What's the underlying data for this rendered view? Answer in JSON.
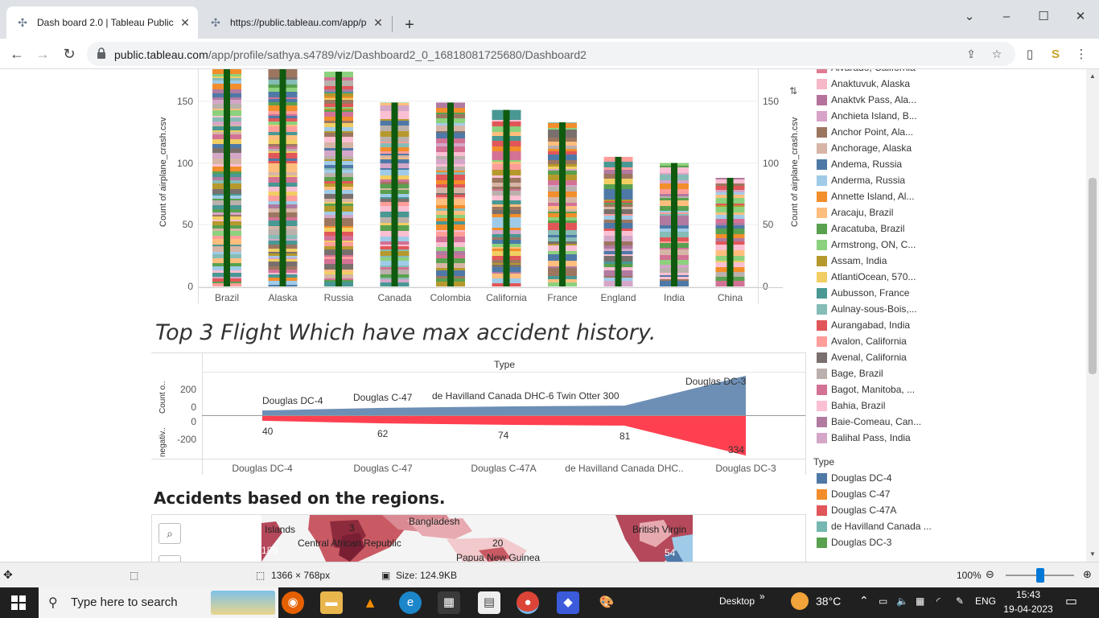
{
  "browser": {
    "tabs": [
      {
        "title": "Dash board 2.0 | Tableau Public",
        "active": true
      },
      {
        "title": "https://public.tableau.com/app/p",
        "active": false
      }
    ],
    "url_host": "public.tableau.com",
    "url_path": "/app/profile/sathya.s4789/viz/Dashboard2_0_16818081725680/Dashboard2"
  },
  "chart_data": [
    {
      "type": "bar",
      "categories": [
        "Brazil",
        "Alaska",
        "Russia",
        "Canada",
        "Colombia",
        "California",
        "France",
        "England",
        "India",
        "China"
      ],
      "values": [
        176,
        176,
        174,
        149,
        149,
        143,
        133,
        105,
        100,
        88
      ],
      "ylabel": "Count of airplane_crash.csv",
      "yticks": [
        0,
        50,
        100,
        150
      ],
      "ylim": [
        0,
        176
      ],
      "secondary_ylabel": "Count of airplane_crash.csv",
      "stacked_colors": true
    },
    {
      "type": "area",
      "title": "Type",
      "categories": [
        "Douglas DC-4",
        "Douglas C-47",
        "Douglas C-47A",
        "de Havilland Canada DHC..",
        "Douglas DC-3"
      ],
      "series": [
        {
          "name": "Count o..",
          "values": [
            40,
            62,
            74,
            81,
            334
          ]
        },
        {
          "name": "negativ..",
          "values": [
            -40,
            -62,
            -74,
            -81,
            -334
          ]
        }
      ],
      "upper_labels": [
        "Douglas DC-4",
        "Douglas C-47",
        "de Havilland Canada DHC-6 Twin Otter 300",
        "Douglas DC-3"
      ],
      "lower_labels": [
        "40",
        "62",
        "74",
        "81",
        "334"
      ],
      "upper_ticks": [
        "200",
        "0"
      ],
      "lower_ticks": [
        "0",
        "-200"
      ],
      "ylabel_upper": "Count o..",
      "ylabel_lower": "negativ..",
      "upper_color": "#6d8fb5",
      "lower_color": "#ff4050"
    }
  ],
  "headings": {
    "top3": "Top 3 Flight Which have max accident history.",
    "regions": "Accidents based on the regions."
  },
  "map": {
    "labels": [
      "Islands",
      "3",
      "Bangladesh",
      "British Virgin",
      "189",
      "Central African Republic",
      "20",
      "54",
      "Papua New Guinea"
    ]
  },
  "legend_locations": [
    {
      "label": "Alvarado, California",
      "color": "#e07b91"
    },
    {
      "label": "Anaktuvuk, Alaska",
      "color": "#f6b7c8"
    },
    {
      "label": "Anaktvk Pass, Ala...",
      "color": "#b5729b"
    },
    {
      "label": "Anchieta Island, B...",
      "color": "#d8a3c9"
    },
    {
      "label": "Anchor Point, Ala...",
      "color": "#9c755f"
    },
    {
      "label": "Anchorage, Alaska",
      "color": "#d7b5a6"
    },
    {
      "label": "Andema, Russia",
      "color": "#4e79a7"
    },
    {
      "label": "Anderma, Russia",
      "color": "#a0cbe8"
    },
    {
      "label": "Annette Island, Al...",
      "color": "#f28e2b"
    },
    {
      "label": "Aracaju, Brazil",
      "color": "#ffbe7d"
    },
    {
      "label": "Aracatuba, Brazil",
      "color": "#59a14f"
    },
    {
      "label": "Armstrong, ON, C...",
      "color": "#8cd17d"
    },
    {
      "label": "Assam, India",
      "color": "#b6992d"
    },
    {
      "label": "AtlantiOcean, 570...",
      "color": "#f1ce63"
    },
    {
      "label": "Aubusson, France",
      "color": "#499894"
    },
    {
      "label": "Aulnay-sous-Bois,...",
      "color": "#86bcb6"
    },
    {
      "label": "Aurangabad, India",
      "color": "#e15759"
    },
    {
      "label": "Avalon, California",
      "color": "#ff9d9a"
    },
    {
      "label": "Avenal, California",
      "color": "#79706e"
    },
    {
      "label": "Bage, Brazil",
      "color": "#bab0ac"
    },
    {
      "label": "Bagot, Manitoba, ...",
      "color": "#d37295"
    },
    {
      "label": "Bahia, Brazil",
      "color": "#fabfd2"
    },
    {
      "label": "Baie-Comeau, Can...",
      "color": "#b07aa1"
    },
    {
      "label": "Balihal Pass, India",
      "color": "#d4a6c8"
    }
  ],
  "legend_type": {
    "title": "Type",
    "items": [
      {
        "label": "Douglas DC-4",
        "color": "#4e79a7"
      },
      {
        "label": "Douglas C-47",
        "color": "#f28e2b"
      },
      {
        "label": "Douglas C-47A",
        "color": "#e15759"
      },
      {
        "label": "de Havilland Canada ...",
        "color": "#76b7b2"
      },
      {
        "label": "Douglas DC-3",
        "color": "#59a14f"
      }
    ]
  },
  "statusbar": {
    "dimensions": "1366 × 768px",
    "size": "Size: 124.9KB",
    "zoom": "100%"
  },
  "taskbar": {
    "search_placeholder": "Type here to search",
    "desktop": "Desktop",
    "weather": "38°C",
    "lang": "ENG",
    "time": "15:43",
    "date": "19-04-2023"
  }
}
